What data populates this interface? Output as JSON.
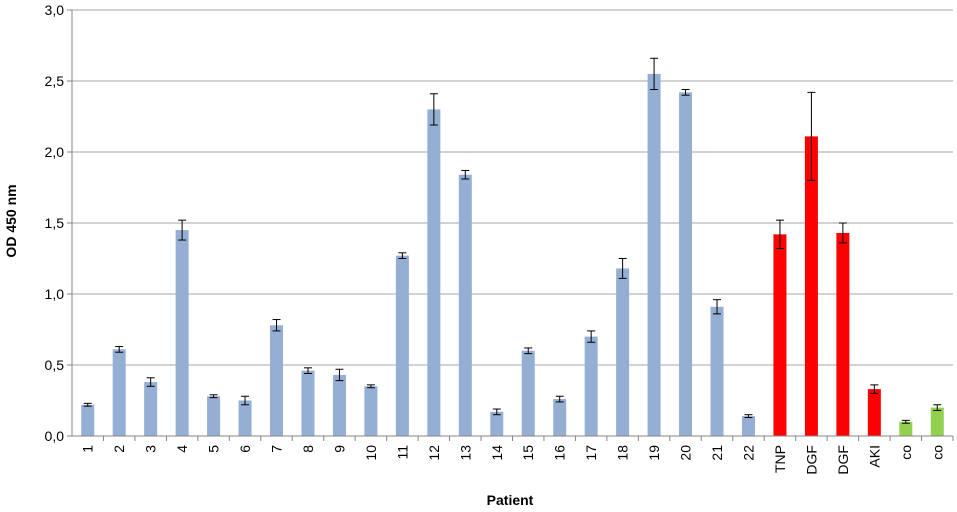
{
  "chart_data": {
    "type": "bar",
    "title": "",
    "xlabel": "Patient",
    "ylabel": "OD 450 nm",
    "ylim": [
      0,
      3.0
    ],
    "yticks": [
      "0,0",
      "0,5",
      "1,0",
      "1,5",
      "2,0",
      "2,5",
      "3,0"
    ],
    "grid": true,
    "legend": "none",
    "colors": {
      "patient": "#95aed3",
      "disease": "#ff0000",
      "control": "#92d050",
      "grid": "#a6a6a6",
      "axis": "#868686"
    },
    "categories": [
      "1",
      "2",
      "3",
      "4",
      "5",
      "6",
      "7",
      "8",
      "9",
      "10",
      "11",
      "12",
      "13",
      "14",
      "15",
      "16",
      "17",
      "18",
      "19",
      "20",
      "21",
      "22",
      "TNP",
      "DGF",
      "DGF",
      "AKI",
      "co",
      "co"
    ],
    "values": [
      0.22,
      0.61,
      0.38,
      1.45,
      0.28,
      0.25,
      0.78,
      0.46,
      0.43,
      0.35,
      1.27,
      2.3,
      1.84,
      0.17,
      0.6,
      0.26,
      0.7,
      1.18,
      2.55,
      2.42,
      0.91,
      0.14,
      1.42,
      2.11,
      1.43,
      0.33,
      0.1,
      0.2
    ],
    "errors": [
      0.01,
      0.02,
      0.03,
      0.07,
      0.01,
      0.03,
      0.04,
      0.02,
      0.04,
      0.01,
      0.02,
      0.11,
      0.03,
      0.02,
      0.02,
      0.02,
      0.04,
      0.07,
      0.11,
      0.02,
      0.05,
      0.01,
      0.1,
      0.31,
      0.07,
      0.03,
      0.01,
      0.02
    ],
    "groups": [
      "patient",
      "patient",
      "patient",
      "patient",
      "patient",
      "patient",
      "patient",
      "patient",
      "patient",
      "patient",
      "patient",
      "patient",
      "patient",
      "patient",
      "patient",
      "patient",
      "patient",
      "patient",
      "patient",
      "patient",
      "patient",
      "patient",
      "disease",
      "disease",
      "disease",
      "disease",
      "control",
      "control"
    ]
  }
}
